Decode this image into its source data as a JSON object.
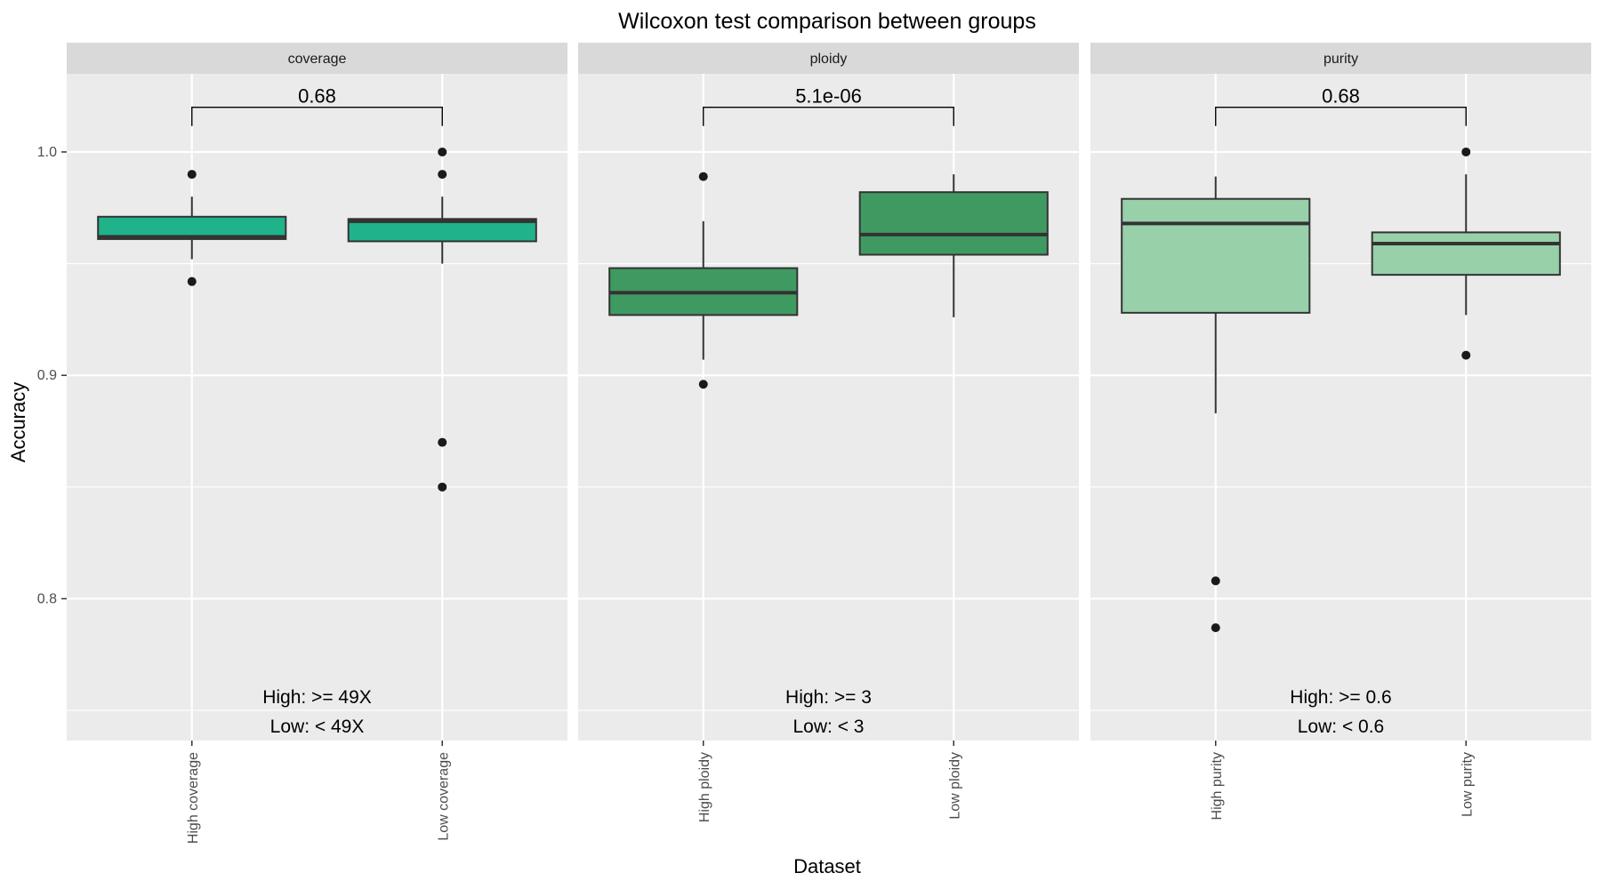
{
  "chart_data": {
    "type": "box",
    "title": "Wilcoxon test comparison between groups",
    "xlabel": "Dataset",
    "ylabel": "Accuracy",
    "ylim": [
      0.7365,
      1.035
    ],
    "yticks": [
      0.8,
      0.9,
      1.0
    ],
    "ytick_labels": [
      "0.8",
      "0.9",
      "1.0"
    ],
    "grid": true,
    "panels": [
      {
        "strip": "coverage",
        "color": "#20b28a",
        "pvalue": "0.68",
        "bracket_y": 1.02,
        "notes": [
          "High: >= 49X",
          "Low: < 49X"
        ],
        "groups": [
          {
            "label": "High coverage",
            "q1": 0.961,
            "median": 0.962,
            "q3": 0.971,
            "whisker_low": 0.952,
            "whisker_high": 0.98,
            "outliers": [
              0.99,
              0.942
            ]
          },
          {
            "label": "Low coverage",
            "q1": 0.96,
            "median": 0.969,
            "q3": 0.97,
            "whisker_low": 0.95,
            "whisker_high": 0.98,
            "outliers": [
              1.0,
              0.99,
              0.87,
              0.85
            ]
          }
        ]
      },
      {
        "strip": "ploidy",
        "color": "#3f9a61",
        "pvalue": "5.1e-06",
        "bracket_y": 1.02,
        "notes": [
          "High: >= 3",
          "Low: < 3"
        ],
        "groups": [
          {
            "label": "High ploidy",
            "q1": 0.927,
            "median": 0.937,
            "q3": 0.948,
            "whisker_low": 0.907,
            "whisker_high": 0.969,
            "outliers": [
              0.989,
              0.896
            ]
          },
          {
            "label": "Low ploidy",
            "q1": 0.954,
            "median": 0.963,
            "q3": 0.982,
            "whisker_low": 0.926,
            "whisker_high": 0.99,
            "outliers": []
          }
        ]
      },
      {
        "strip": "purity",
        "color": "#98d0a9",
        "pvalue": "0.68",
        "bracket_y": 1.02,
        "notes": [
          "High: >= 0.6",
          "Low: < 0.6"
        ],
        "groups": [
          {
            "label": "High purity",
            "q1": 0.928,
            "median": 0.968,
            "q3": 0.979,
            "whisker_low": 0.883,
            "whisker_high": 0.989,
            "outliers": [
              0.808,
              0.787
            ]
          },
          {
            "label": "Low purity",
            "q1": 0.945,
            "median": 0.959,
            "q3": 0.964,
            "whisker_low": 0.927,
            "whisker_high": 0.99,
            "outliers": [
              1.0,
              0.909
            ]
          }
        ]
      }
    ]
  }
}
